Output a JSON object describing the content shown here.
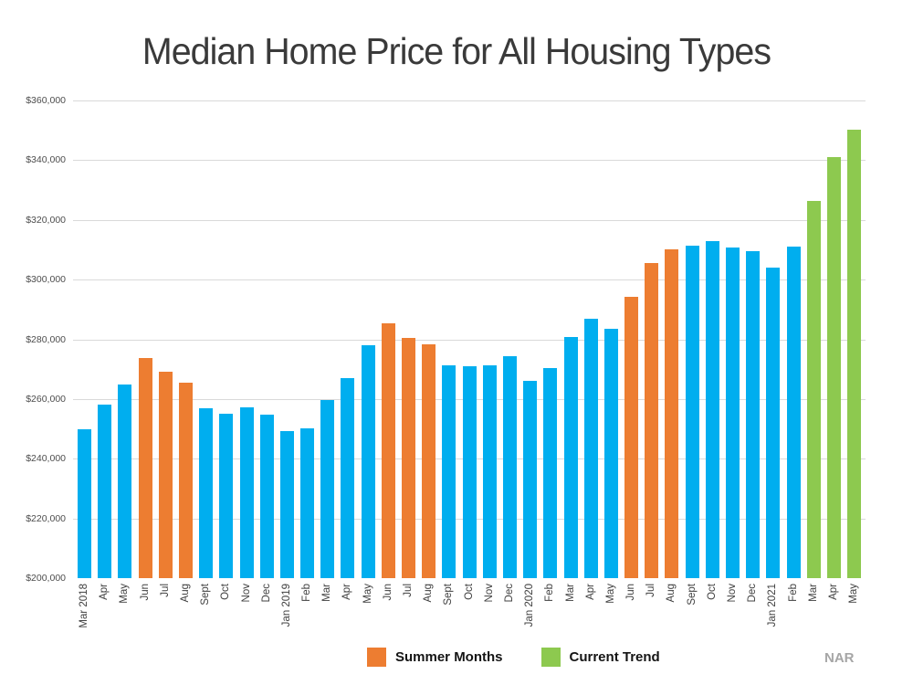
{
  "title": "Median Home Price for All Housing Types",
  "source_label": "NAR",
  "colors": {
    "blue": "#00AEEF",
    "orange": "#ED7D31",
    "green": "#8DC94F",
    "grid": "#D9D9D9",
    "axis_text": "#4D4D4D",
    "title_text": "#3A3A3A",
    "source_text": "#A6A6A6"
  },
  "legend": [
    {
      "label": "Summer Months",
      "group": "summer"
    },
    {
      "label": "Current Trend",
      "group": "trend"
    }
  ],
  "chart_data": {
    "type": "bar",
    "title": "Median Home Price for All Housing Types",
    "xlabel": "",
    "ylabel": "",
    "ylim": [
      200000,
      360000
    ],
    "yticks": [
      200000,
      220000,
      240000,
      260000,
      280000,
      300000,
      320000,
      340000,
      360000
    ],
    "ytick_labels": [
      "$200,000",
      "$220,000",
      "$240,000",
      "$260,000",
      "$280,000",
      "$300,000",
      "$320,000",
      "$340,000",
      "$360,000"
    ],
    "grid": true,
    "gridline_at_min": false,
    "legend_position": "bottom",
    "legend_entries": [
      "Summer Months",
      "Current Trend"
    ],
    "categories": [
      "Mar 2018",
      "Apr",
      "May",
      "Jun",
      "Jul",
      "Aug",
      "Sept",
      "Oct",
      "Nov",
      "Dec",
      "Jan 2019",
      "Feb",
      "Mar",
      "Apr",
      "May",
      "Jun",
      "Jul",
      "Aug",
      "Sept",
      "Oct",
      "Nov",
      "Dec",
      "Jan 2020",
      "Feb",
      "Mar",
      "Apr",
      "May",
      "Jun",
      "Jul",
      "Aug",
      "Sept",
      "Oct",
      "Nov",
      "Dec",
      "Jan 2021",
      "Feb",
      "Mar",
      "Apr",
      "May"
    ],
    "values": [
      250000,
      258000,
      265000,
      273800,
      269300,
      265500,
      257000,
      255200,
      257300,
      254800,
      249400,
      250100,
      259700,
      267000,
      278000,
      285400,
      280500,
      278400,
      271300,
      271000,
      271200,
      274300,
      266000,
      270500,
      280700,
      287000,
      283500,
      294200,
      305500,
      310300,
      311300,
      312900,
      310800,
      309400,
      303900,
      311000,
      326300,
      340900,
      350100
    ],
    "groups": [
      "regular",
      "regular",
      "regular",
      "summer",
      "summer",
      "summer",
      "regular",
      "regular",
      "regular",
      "regular",
      "regular",
      "regular",
      "regular",
      "regular",
      "regular",
      "summer",
      "summer",
      "summer",
      "regular",
      "regular",
      "regular",
      "regular",
      "regular",
      "regular",
      "regular",
      "regular",
      "regular",
      "summer",
      "summer",
      "summer",
      "regular",
      "regular",
      "regular",
      "regular",
      "regular",
      "regular",
      "trend",
      "trend",
      "trend"
    ],
    "group_colors": {
      "regular": "#00AEEF",
      "summer": "#ED7D31",
      "trend": "#8DC94F"
    }
  }
}
